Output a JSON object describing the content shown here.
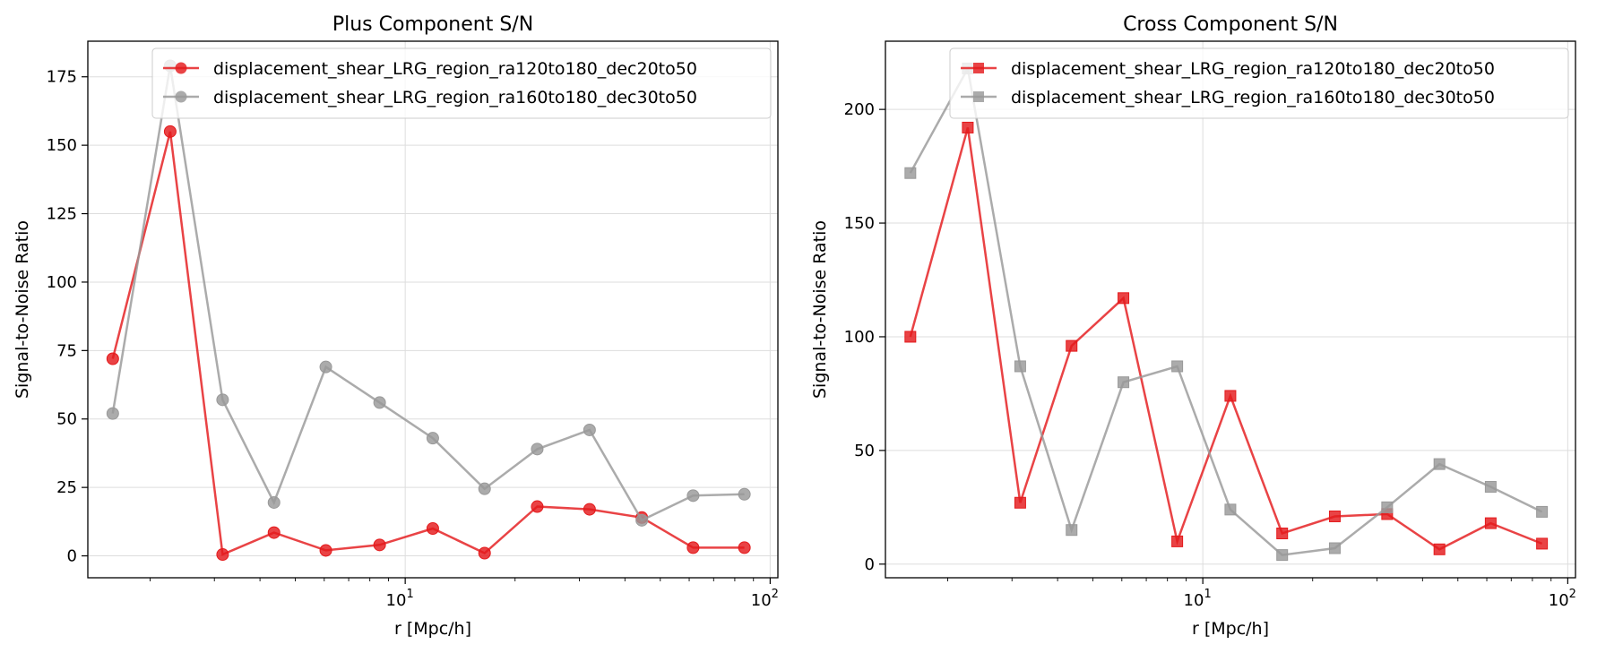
{
  "chart_data": [
    {
      "type": "line",
      "title": "Plus Component S/N",
      "xlabel": "r [Mpc/h]",
      "ylabel": "Signal-to-Noise Ratio",
      "xscale": "log",
      "xlim": [
        1.35,
        105
      ],
      "ylim": [
        -8,
        188
      ],
      "x_ticks": [
        {
          "value": 10,
          "base": "10",
          "exp": "1"
        },
        {
          "value": 100,
          "base": "10",
          "exp": "2"
        }
      ],
      "y_ticks": [
        0,
        25,
        50,
        75,
        100,
        125,
        150,
        175
      ],
      "grid": true,
      "legend_position": "top-right",
      "x": [
        1.58,
        2.27,
        3.16,
        4.37,
        6.06,
        8.51,
        11.9,
        16.5,
        23.0,
        32.0,
        44.5,
        61.5,
        85.0
      ],
      "series": [
        {
          "name": "displacement_shear_LRG_region_ra120to180_dec20to50",
          "color": "#e41a1c",
          "marker": "circle",
          "values": [
            72,
            155,
            0.5,
            8.5,
            2,
            4,
            10,
            1,
            18,
            17,
            14,
            3,
            3
          ]
        },
        {
          "name": "displacement_shear_LRG_region_ra160to180_dec30to50",
          "color": "#999999",
          "marker": "circle",
          "values": [
            52,
            179,
            57,
            19.5,
            69,
            56,
            43,
            24.5,
            39,
            46,
            13,
            22,
            22.5
          ]
        }
      ]
    },
    {
      "type": "line",
      "title": "Cross Component S/N",
      "xlabel": "r [Mpc/h]",
      "ylabel": "Signal-to-Noise Ratio",
      "xscale": "log",
      "xlim": [
        1.35,
        105
      ],
      "ylim": [
        -6,
        230
      ],
      "x_ticks": [
        {
          "value": 10,
          "base": "10",
          "exp": "1"
        },
        {
          "value": 100,
          "base": "10",
          "exp": "2"
        }
      ],
      "y_ticks": [
        0,
        50,
        100,
        150,
        200
      ],
      "grid": true,
      "legend_position": "top-right",
      "x": [
        1.58,
        2.27,
        3.16,
        4.37,
        6.06,
        8.51,
        11.9,
        16.5,
        23.0,
        32.0,
        44.5,
        61.5,
        85.0
      ],
      "series": [
        {
          "name": "displacement_shear_LRG_region_ra120to180_dec20to50",
          "color": "#e41a1c",
          "marker": "square",
          "values": [
            100,
            192,
            27,
            96,
            117,
            10,
            74,
            13.5,
            21,
            22,
            6.5,
            18,
            9
          ]
        },
        {
          "name": "displacement_shear_LRG_region_ra160to180_dec30to50",
          "color": "#999999",
          "marker": "square",
          "values": [
            172,
            218,
            87,
            15,
            80,
            87,
            24,
            4,
            7,
            25,
            44,
            34,
            23
          ]
        }
      ]
    }
  ]
}
